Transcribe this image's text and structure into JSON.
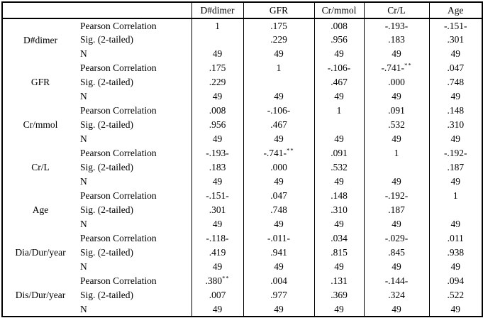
{
  "table": {
    "corner_label": "",
    "columns": [
      "D#dimer",
      "GFR",
      "Cr/mmol",
      "Cr/L",
      "Age"
    ],
    "stat_labels": [
      "Pearson Correlation",
      "Sig. (2-tailed)",
      "N"
    ],
    "groups": [
      {
        "variable": "D#dimer",
        "pearson": [
          "1",
          ".175",
          ".008",
          "-.193-",
          "-.151-"
        ],
        "sig": [
          "",
          ".229",
          ".956",
          ".183",
          ".301"
        ],
        "n": [
          "49",
          "49",
          "49",
          "49",
          "49"
        ]
      },
      {
        "variable": "GFR",
        "pearson": [
          ".175",
          "1",
          "-.106-",
          "-.741-**",
          ".047"
        ],
        "sig": [
          ".229",
          "",
          ".467",
          ".000",
          ".748"
        ],
        "n": [
          "49",
          "49",
          "49",
          "49",
          "49"
        ]
      },
      {
        "variable": "Cr/mmol",
        "pearson": [
          ".008",
          "-.106-",
          "1",
          ".091",
          ".148"
        ],
        "sig": [
          ".956",
          ".467",
          "",
          ".532",
          ".310"
        ],
        "n": [
          "49",
          "49",
          "49",
          "49",
          "49"
        ]
      },
      {
        "variable": "Cr/L",
        "pearson": [
          "-.193-",
          "-.741-**",
          ".091",
          "1",
          "-.192-"
        ],
        "sig": [
          ".183",
          ".000",
          ".532",
          "",
          ".187"
        ],
        "n": [
          "49",
          "49",
          "49",
          "49",
          "49"
        ]
      },
      {
        "variable": "Age",
        "pearson": [
          "-.151-",
          ".047",
          ".148",
          "-.192-",
          "1"
        ],
        "sig": [
          ".301",
          ".748",
          ".310",
          ".187",
          ""
        ],
        "n": [
          "49",
          "49",
          "49",
          "49",
          "49"
        ]
      },
      {
        "variable": "Dia/Dur/year",
        "pearson": [
          "-.118-",
          "-.011-",
          ".034",
          "-.029-",
          ".011"
        ],
        "sig": [
          ".419",
          ".941",
          ".815",
          ".845",
          ".938"
        ],
        "n": [
          "49",
          "49",
          "49",
          "49",
          "49"
        ]
      },
      {
        "variable": "Dis/Dur/year",
        "pearson": [
          ".380**",
          ".004",
          ".131",
          "-.144-",
          ".094"
        ],
        "sig": [
          ".007",
          ".977",
          ".369",
          ".324",
          ".522"
        ],
        "n": [
          "49",
          "49",
          "49",
          "49",
          "49"
        ]
      }
    ],
    "colors": {
      "border": "#000000",
      "text": "#000000",
      "background": "#ffffff"
    }
  }
}
